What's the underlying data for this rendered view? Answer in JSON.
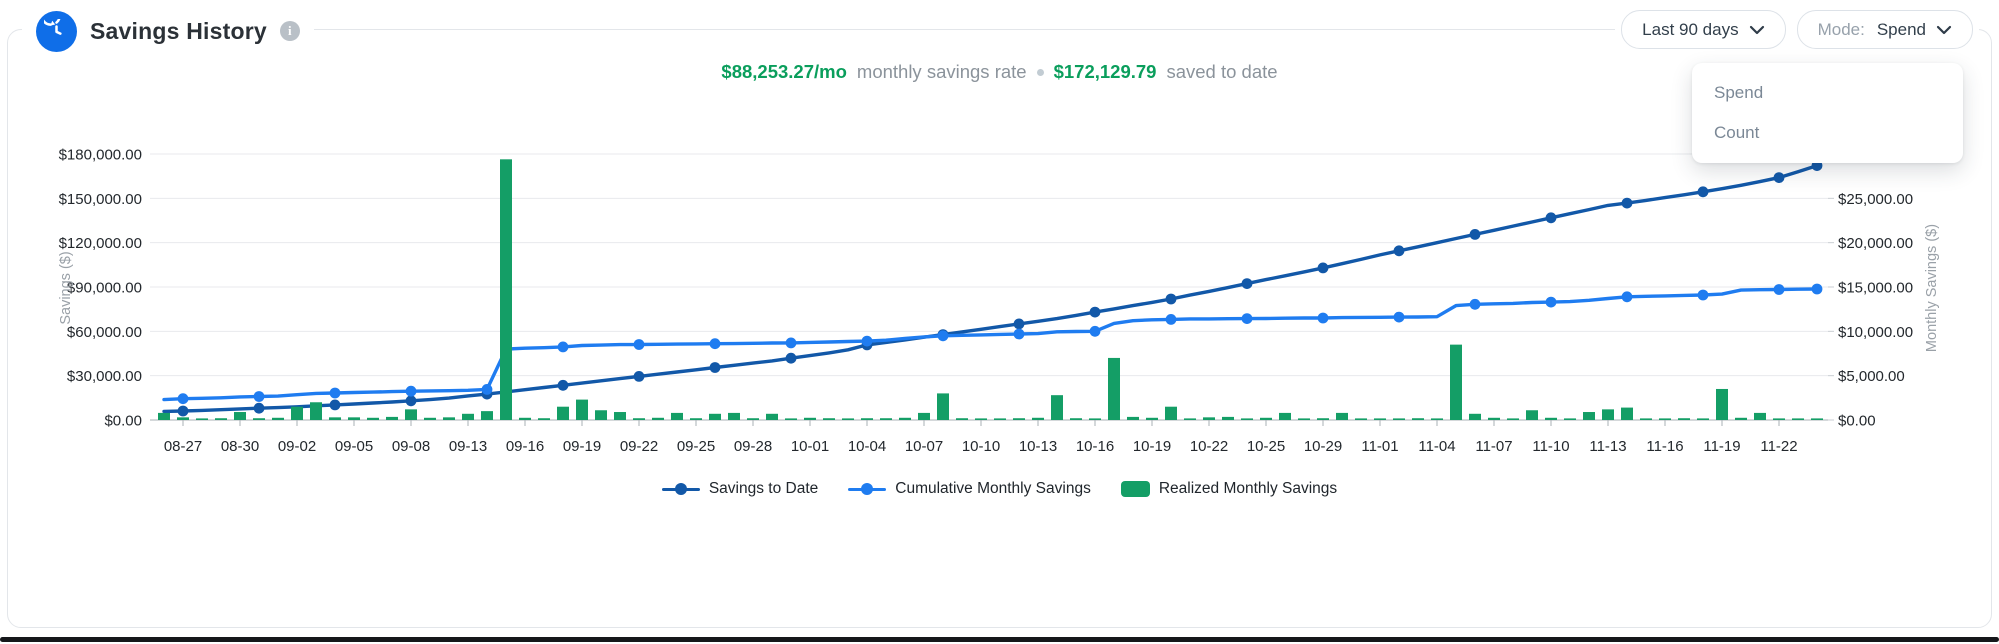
{
  "header": {
    "title": "Savings History",
    "app_icon": "history-clock-icon",
    "info_icon": "info-icon",
    "range_label": "Last 90 days",
    "mode_label": "Mode:",
    "mode_value": "Spend",
    "mode_options": [
      "Spend",
      "Count"
    ]
  },
  "stats": {
    "rate_value": "$88,253.27/mo",
    "rate_caption": "monthly savings rate",
    "total_value": "$172,129.79",
    "total_caption": "saved to date"
  },
  "colors": {
    "accent_blue": "#0f6ee8",
    "savings_line": "#1258a8",
    "cumulative_line": "#1f7cf0",
    "bars_green": "#149e66",
    "stat_green": "#0a9e5c",
    "muted_text": "#8b939b",
    "grid": "#e8eaed",
    "axis_line": "#a9b0b6",
    "tick_text": "#23282d"
  },
  "chart_data": {
    "type": "mixed",
    "title": "Savings History",
    "x_tick_labels": [
      "08-27",
      "08-30",
      "09-02",
      "09-05",
      "09-08",
      "09-13",
      "09-16",
      "09-19",
      "09-22",
      "09-25",
      "09-28",
      "10-01",
      "10-04",
      "10-07",
      "10-10",
      "10-13",
      "10-16",
      "10-19",
      "10-22",
      "10-25",
      "10-29",
      "11-01",
      "11-04",
      "11-07",
      "11-10",
      "11-13",
      "11-16",
      "11-19",
      "11-22"
    ],
    "points_per_tick": 3,
    "grid": true,
    "legend_position": "bottom",
    "left_axis": {
      "title": "Savings ($)",
      "max": 180000,
      "tick_values": [
        0,
        30000,
        60000,
        90000,
        120000,
        150000,
        180000
      ],
      "tick_labels": [
        "$0.00",
        "$30,000.00",
        "$60,000.00",
        "$90,000.00",
        "$120,000.00",
        "$150,000.00",
        "$180,000.00"
      ]
    },
    "right_axis": {
      "title": "Monthly Savings ($)",
      "max": 30000,
      "tick_values": [
        0,
        5000,
        10000,
        15000,
        20000,
        25000
      ],
      "tick_labels": [
        "$0.00",
        "$5,000.00",
        "$10,000.00",
        "$15,000.00",
        "$20,000.00",
        "$25,000.00"
      ]
    },
    "series": [
      {
        "name": "Savings to Date",
        "type": "line",
        "axis": "left",
        "color": "#1258a8",
        "values": [
          5800,
          6100,
          6500,
          7000,
          7500,
          8000,
          8400,
          8900,
          9600,
          10200,
          10800,
          11500,
          12200,
          13000,
          13800,
          14800,
          16300,
          17500,
          19000,
          20500,
          22000,
          23500,
          25000,
          26500,
          28000,
          29500,
          31000,
          32500,
          34000,
          35500,
          37000,
          38500,
          40000,
          41800,
          43600,
          45400,
          47500,
          50800,
          52500,
          54200,
          56000,
          57800,
          59600,
          61400,
          63200,
          65000,
          66800,
          68600,
          70800,
          73000,
          75200,
          77400,
          79600,
          81900,
          84500,
          87000,
          89600,
          92300,
          95000,
          97600,
          100200,
          102900,
          105800,
          108700,
          111700,
          114500,
          117200,
          120000,
          122800,
          125600,
          128400,
          131200,
          134000,
          136800,
          139600,
          142400,
          145200,
          146800,
          148600,
          150500,
          152400,
          154400,
          156500,
          158800,
          161300,
          164000,
          168000,
          172129.79
        ]
      },
      {
        "name": "Cumulative Monthly Savings",
        "type": "line",
        "axis": "right",
        "color": "#1f7cf0",
        "values": [
          2300,
          2400,
          2450,
          2500,
          2600,
          2650,
          2700,
          2850,
          3000,
          3050,
          3100,
          3150,
          3200,
          3250,
          3280,
          3300,
          3350,
          3450,
          8000,
          8100,
          8150,
          8250,
          8400,
          8450,
          8500,
          8520,
          8540,
          8560,
          8580,
          8600,
          8620,
          8650,
          8680,
          8700,
          8750,
          8800,
          8850,
          8900,
          9000,
          9200,
          9370,
          9500,
          9550,
          9600,
          9650,
          9700,
          9750,
          9950,
          9980,
          10000,
          10900,
          11200,
          11300,
          11350,
          11400,
          11400,
          11420,
          11440,
          11450,
          11480,
          11500,
          11500,
          11550,
          11570,
          11580,
          11600,
          11620,
          11650,
          12900,
          13050,
          13100,
          13150,
          13250,
          13300,
          13350,
          13500,
          13700,
          13900,
          13950,
          14000,
          14050,
          14100,
          14200,
          14650,
          14700,
          14720,
          14750,
          14780
        ]
      },
      {
        "name": "Realized Monthly Savings",
        "type": "bar",
        "axis": "right",
        "color": "#149e66",
        "values": [
          800,
          300,
          150,
          200,
          900,
          200,
          250,
          1500,
          2000,
          300,
          300,
          250,
          350,
          1200,
          250,
          300,
          700,
          1000,
          29400,
          250,
          200,
          1500,
          2300,
          1100,
          900,
          200,
          250,
          800,
          200,
          700,
          800,
          200,
          700,
          150,
          250,
          200,
          150,
          200,
          200,
          250,
          800,
          3000,
          200,
          150,
          100,
          200,
          250,
          2800,
          200,
          150,
          7000,
          350,
          250,
          1500,
          150,
          300,
          350,
          150,
          250,
          800,
          150,
          200,
          800,
          150,
          150,
          100,
          200,
          150,
          8500,
          700,
          250,
          150,
          1100,
          250,
          100,
          900,
          1200,
          1400,
          100,
          150,
          200,
          100,
          3500,
          250,
          800,
          150,
          100,
          100
        ]
      }
    ]
  }
}
